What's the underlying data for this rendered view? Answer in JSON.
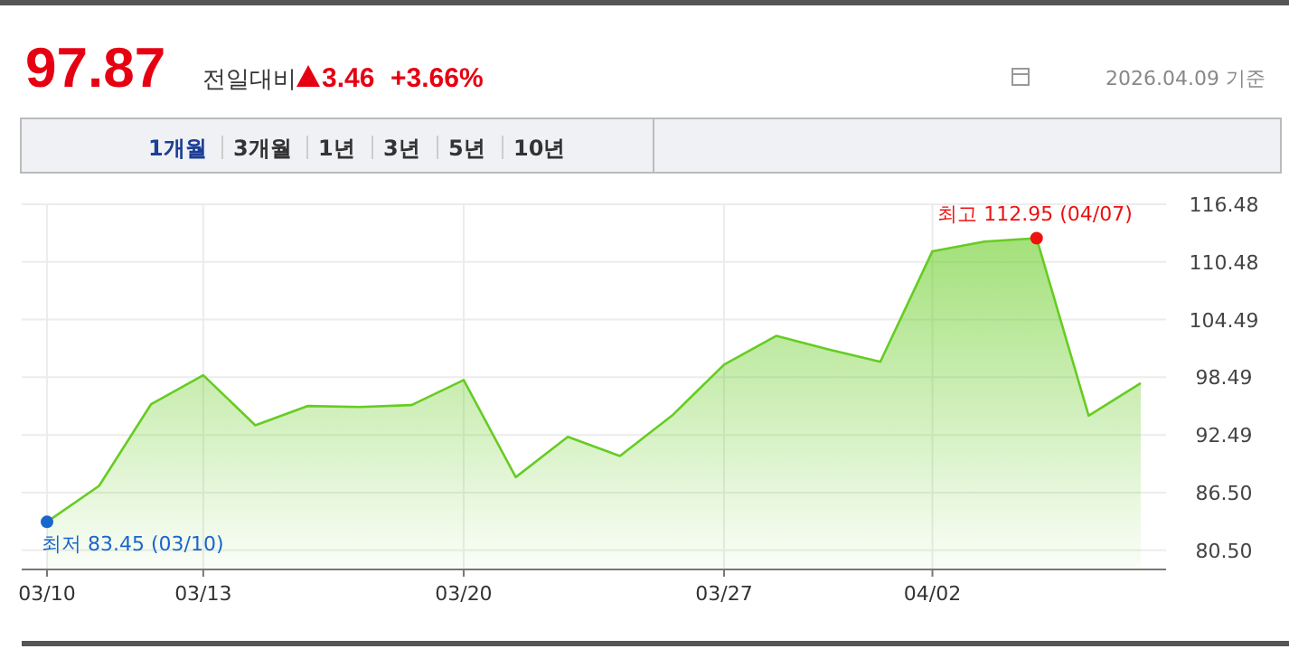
{
  "chart_data": {
    "type": "area",
    "title": "97.87",
    "categories": [
      "03/10",
      null,
      null,
      "03/13",
      null,
      null,
      null,
      null,
      "03/20",
      null,
      null,
      null,
      null,
      "03/27",
      null,
      null,
      null,
      "04/02",
      null,
      null,
      null,
      null
    ],
    "series": [
      {
        "color": "#66cc22",
        "values": [
          83.45,
          87.2,
          95.7,
          98.7,
          93.5,
          95.5,
          95.4,
          95.6,
          98.2,
          88.1,
          92.3,
          90.3,
          94.5,
          99.8,
          102.8,
          101.4,
          100.1,
          111.6,
          112.6,
          112.95,
          94.5,
          97.87
        ]
      }
    ],
    "ylim": [
      78.5,
      116.48
    ],
    "yticks": [
      {
        "value": 80.5,
        "label": "80.50"
      },
      {
        "value": 86.5,
        "label": "86.50"
      },
      92.49,
      98.49,
      104.49,
      110.48,
      116.48
    ],
    "grid": true,
    "marker": "none",
    "annotations": [
      {
        "text": "최저 83.45 (03/10)",
        "x": "03/10",
        "y": 83.45
      },
      {
        "text": "최고 112.95 (04/07)",
        "y": 112.95
      },
      "전일대비",
      "3.46",
      "+3.66%",
      "2026.04.09 기준",
      "1개월",
      "3개월",
      "1년",
      "3년",
      "5년",
      "10년"
    ]
  }
}
